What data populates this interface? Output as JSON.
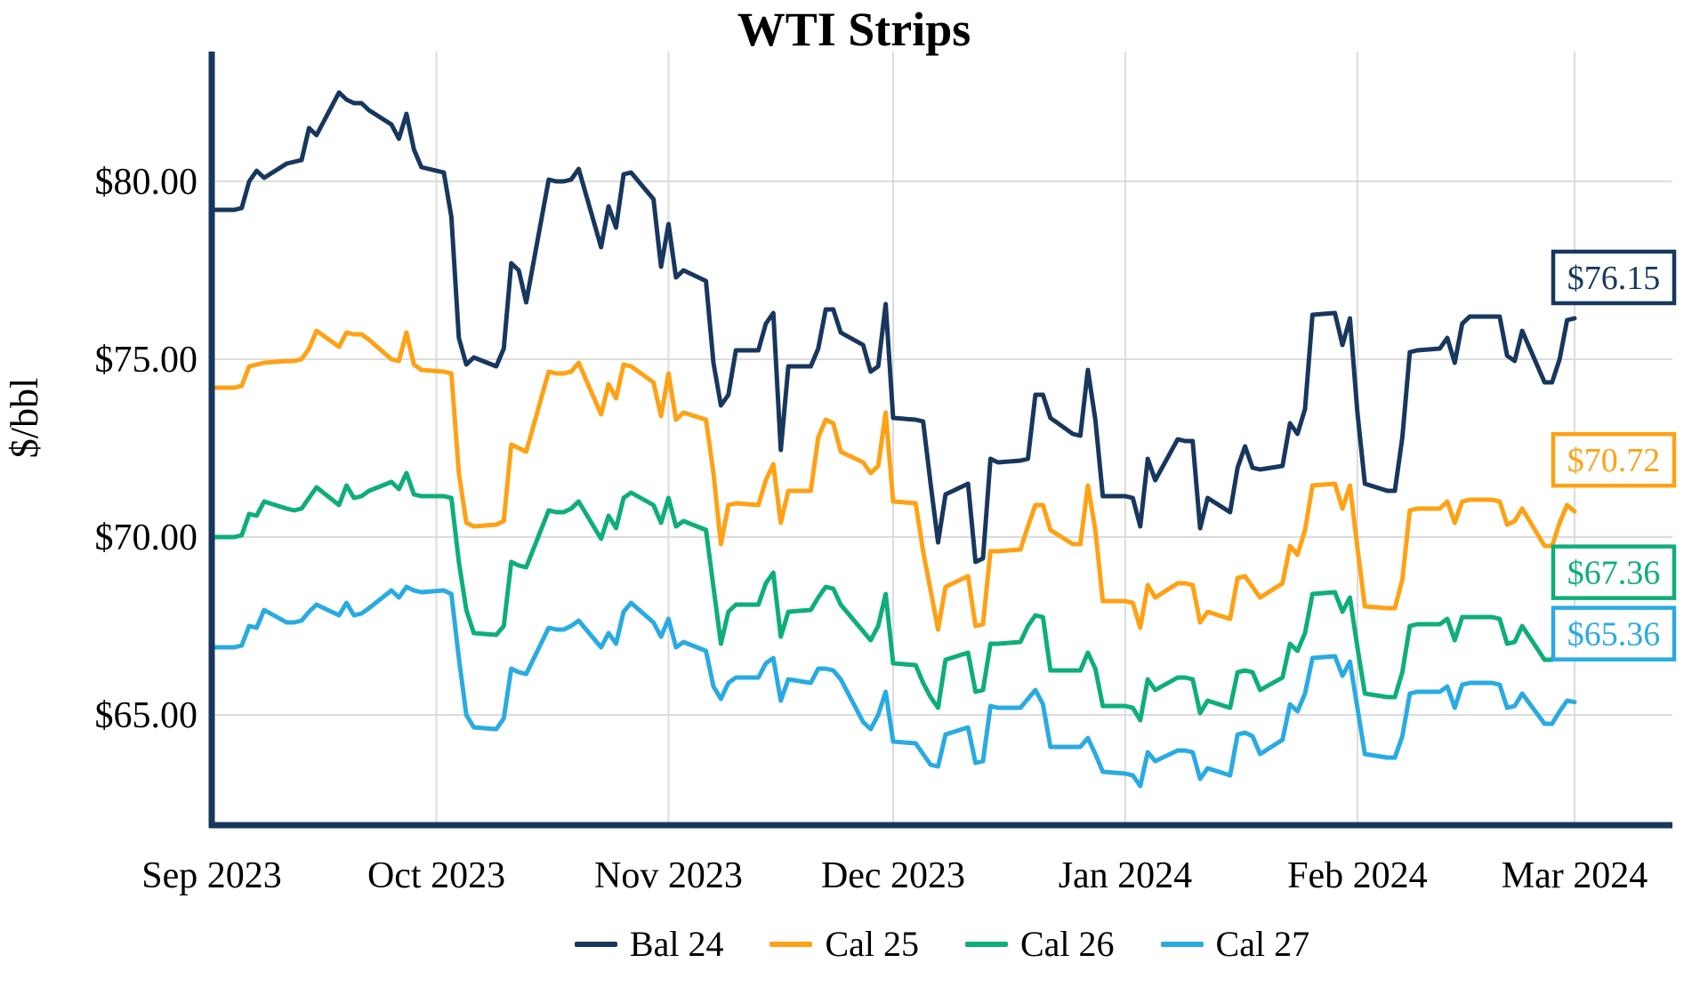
{
  "chart_data": {
    "type": "line",
    "title": "WTI Strips",
    "ylabel": "$/bbl",
    "grid": true,
    "legend_position": "bottom-center",
    "ylim": [
      61.9,
      83.65
    ],
    "colors": {
      "axis": "#17375E",
      "gridline": "#DCDCDC",
      "background": "#FFFFFF",
      "label_box_fill": "#FFFFFF"
    },
    "yticks": [
      {
        "value": 80,
        "label": "$80.00"
      },
      {
        "value": 75,
        "label": "$75.00"
      },
      {
        "value": 70,
        "label": "$70.00"
      },
      {
        "value": 65,
        "label": "$65.00"
      }
    ],
    "xticks": [
      {
        "date": "2023-09-01",
        "label": "Sep 2023"
      },
      {
        "date": "2023-10-01",
        "label": "Oct 2023"
      },
      {
        "date": "2023-11-01",
        "label": "Nov 2023"
      },
      {
        "date": "2023-12-01",
        "label": "Dec 2023"
      },
      {
        "date": "2024-01-01",
        "label": "Jan 2024"
      },
      {
        "date": "2024-02-01",
        "label": "Feb 2024"
      },
      {
        "date": "2024-03-01",
        "label": "Mar 2024"
      }
    ],
    "x": [
      "2023-09-01",
      "2023-09-04",
      "2023-09-05",
      "2023-09-06",
      "2023-09-07",
      "2023-09-08",
      "2023-09-11",
      "2023-09-12",
      "2023-09-13",
      "2023-09-14",
      "2023-09-15",
      "2023-09-18",
      "2023-09-19",
      "2023-09-20",
      "2023-09-21",
      "2023-09-22",
      "2023-09-25",
      "2023-09-26",
      "2023-09-27",
      "2023-09-28",
      "2023-09-29",
      "2023-10-02",
      "2023-10-03",
      "2023-10-04",
      "2023-10-05",
      "2023-10-06",
      "2023-10-09",
      "2023-10-10",
      "2023-10-11",
      "2023-10-12",
      "2023-10-13",
      "2023-10-16",
      "2023-10-17",
      "2023-10-18",
      "2023-10-19",
      "2023-10-20",
      "2023-10-23",
      "2023-10-24",
      "2023-10-25",
      "2023-10-26",
      "2023-10-27",
      "2023-10-30",
      "2023-10-31",
      "2023-11-01",
      "2023-11-02",
      "2023-11-03",
      "2023-11-06",
      "2023-11-07",
      "2023-11-08",
      "2023-11-09",
      "2023-11-10",
      "2023-11-13",
      "2023-11-14",
      "2023-11-15",
      "2023-11-16",
      "2023-11-17",
      "2023-11-20",
      "2023-11-21",
      "2023-11-22",
      "2023-11-23",
      "2023-11-24",
      "2023-11-27",
      "2023-11-28",
      "2023-11-29",
      "2023-11-30",
      "2023-12-01",
      "2023-12-04",
      "2023-12-05",
      "2023-12-06",
      "2023-12-07",
      "2023-12-08",
      "2023-12-11",
      "2023-12-12",
      "2023-12-13",
      "2023-12-14",
      "2023-12-15",
      "2023-12-18",
      "2023-12-19",
      "2023-12-20",
      "2023-12-21",
      "2023-12-22",
      "2023-12-25",
      "2023-12-26",
      "2023-12-27",
      "2023-12-28",
      "2023-12-29",
      "2024-01-01",
      "2024-01-02",
      "2024-01-03",
      "2024-01-04",
      "2024-01-05",
      "2024-01-08",
      "2024-01-09",
      "2024-01-10",
      "2024-01-11",
      "2024-01-12",
      "2024-01-15",
      "2024-01-16",
      "2024-01-17",
      "2024-01-18",
      "2024-01-19",
      "2024-01-22",
      "2024-01-23",
      "2024-01-24",
      "2024-01-25",
      "2024-01-26",
      "2024-01-29",
      "2024-01-30",
      "2024-01-31",
      "2024-02-01",
      "2024-02-02",
      "2024-02-05",
      "2024-02-06",
      "2024-02-07",
      "2024-02-08",
      "2024-02-09",
      "2024-02-12",
      "2024-02-13",
      "2024-02-14",
      "2024-02-15",
      "2024-02-16",
      "2024-02-19",
      "2024-02-20",
      "2024-02-21",
      "2024-02-22",
      "2024-02-23",
      "2024-02-26",
      "2024-02-27",
      "2024-02-28",
      "2024-02-29",
      "2024-03-01"
    ],
    "series": [
      {
        "name": "Bal 24",
        "color": "#17375E",
        "end_label": "$76.15",
        "values": [
          79.2,
          79.2,
          79.25,
          80.0,
          80.3,
          80.1,
          80.5,
          80.55,
          80.6,
          81.5,
          81.3,
          82.5,
          82.3,
          82.2,
          82.2,
          82.0,
          81.6,
          81.2,
          81.9,
          80.9,
          80.4,
          80.25,
          79.0,
          75.6,
          74.85,
          75.05,
          74.8,
          75.3,
          77.7,
          77.5,
          76.6,
          80.05,
          80.0,
          80.0,
          80.05,
          80.35,
          78.15,
          79.3,
          78.7,
          80.2,
          80.25,
          79.5,
          77.6,
          78.8,
          77.3,
          77.5,
          77.2,
          74.9,
          73.7,
          74.0,
          75.25,
          75.25,
          76.0,
          76.3,
          72.45,
          74.8,
          74.8,
          75.3,
          76.4,
          76.4,
          75.75,
          75.4,
          74.65,
          74.8,
          76.55,
          73.35,
          73.3,
          73.25,
          71.5,
          69.85,
          71.2,
          71.5,
          69.3,
          69.4,
          72.2,
          72.1,
          72.15,
          72.2,
          74.0,
          74.0,
          73.35,
          72.9,
          72.85,
          74.7,
          73.3,
          71.15,
          71.15,
          71.1,
          70.3,
          72.2,
          71.6,
          72.75,
          72.7,
          72.7,
          70.25,
          71.1,
          70.7,
          71.95,
          72.55,
          71.95,
          71.9,
          72.0,
          73.2,
          72.9,
          73.6,
          76.25,
          76.3,
          75.4,
          76.15,
          73.5,
          71.5,
          71.3,
          71.3,
          72.8,
          75.2,
          75.25,
          75.3,
          75.6,
          74.9,
          76.0,
          76.2,
          76.2,
          76.2,
          75.1,
          74.95,
          75.8,
          74.35,
          74.35,
          75.0,
          76.1,
          76.15
        ]
      },
      {
        "name": "Cal 25",
        "color": "#FFA114",
        "end_label": "$70.72",
        "values": [
          74.2,
          74.2,
          74.25,
          74.8,
          74.85,
          74.9,
          74.95,
          74.95,
          75.0,
          75.3,
          75.8,
          75.35,
          75.75,
          75.7,
          75.7,
          75.55,
          75.0,
          74.95,
          75.75,
          74.85,
          74.7,
          74.65,
          74.6,
          71.8,
          70.4,
          70.3,
          70.35,
          70.45,
          72.6,
          72.5,
          72.4,
          74.65,
          74.6,
          74.6,
          74.65,
          74.9,
          73.45,
          74.3,
          73.9,
          74.85,
          74.8,
          74.35,
          73.4,
          74.6,
          73.3,
          73.5,
          73.3,
          71.8,
          69.8,
          70.9,
          70.95,
          70.9,
          71.6,
          72.05,
          70.4,
          71.3,
          71.3,
          72.8,
          73.3,
          73.2,
          72.4,
          72.1,
          71.8,
          72.0,
          73.5,
          71.0,
          70.95,
          69.6,
          68.5,
          67.4,
          68.6,
          68.9,
          67.5,
          67.55,
          69.6,
          69.6,
          69.65,
          70.3,
          70.9,
          70.9,
          70.2,
          69.8,
          69.8,
          71.45,
          70.2,
          68.2,
          68.2,
          68.15,
          67.45,
          68.65,
          68.3,
          68.7,
          68.7,
          68.65,
          67.6,
          67.9,
          67.7,
          68.85,
          68.9,
          68.6,
          68.3,
          68.7,
          69.75,
          69.5,
          70.2,
          71.45,
          71.5,
          70.8,
          71.45,
          69.7,
          68.05,
          68.0,
          68.0,
          68.8,
          70.75,
          70.8,
          70.8,
          71.0,
          70.4,
          71.0,
          71.05,
          71.05,
          71.0,
          70.35,
          70.45,
          70.8,
          69.75,
          69.75,
          70.4,
          70.9,
          70.72
        ]
      },
      {
        "name": "Cal 26",
        "color": "#0EAE7B",
        "end_label": "$67.36",
        "values": [
          70.0,
          70.0,
          70.05,
          70.65,
          70.6,
          71.0,
          70.8,
          70.75,
          70.8,
          71.1,
          71.4,
          70.9,
          71.45,
          71.1,
          71.15,
          71.3,
          71.55,
          71.35,
          71.8,
          71.2,
          71.15,
          71.15,
          71.1,
          69.3,
          67.95,
          67.3,
          67.25,
          67.5,
          69.3,
          69.2,
          69.15,
          70.75,
          70.7,
          70.7,
          70.8,
          71.0,
          69.95,
          70.6,
          70.25,
          71.1,
          71.25,
          70.9,
          70.4,
          71.1,
          70.3,
          70.45,
          70.2,
          68.6,
          67.0,
          67.9,
          68.1,
          68.1,
          68.7,
          69.0,
          67.2,
          67.9,
          67.95,
          68.3,
          68.6,
          68.55,
          68.1,
          67.35,
          67.1,
          67.5,
          68.4,
          66.45,
          66.4,
          65.9,
          65.5,
          65.2,
          66.55,
          66.75,
          65.65,
          65.7,
          67.0,
          67.0,
          67.05,
          67.5,
          67.8,
          67.75,
          66.25,
          66.25,
          66.25,
          66.75,
          66.3,
          65.25,
          65.25,
          65.2,
          64.85,
          66.0,
          65.7,
          66.05,
          66.05,
          66.0,
          65.05,
          65.4,
          65.2,
          66.2,
          66.25,
          66.2,
          65.7,
          66.05,
          67.0,
          66.8,
          67.3,
          68.4,
          68.45,
          67.9,
          68.3,
          66.9,
          65.6,
          65.5,
          65.5,
          66.2,
          67.5,
          67.55,
          67.55,
          67.7,
          67.1,
          67.75,
          67.75,
          67.75,
          67.7,
          67.0,
          67.05,
          67.5,
          66.55,
          66.55,
          67.0,
          67.3,
          67.36
        ]
      },
      {
        "name": "Cal 27",
        "color": "#29ABE2",
        "end_label": "$65.36",
        "values": [
          66.9,
          66.9,
          66.95,
          67.5,
          67.45,
          67.95,
          67.6,
          67.6,
          67.65,
          67.9,
          68.1,
          67.8,
          68.15,
          67.8,
          67.85,
          68.0,
          68.5,
          68.3,
          68.6,
          68.5,
          68.45,
          68.5,
          68.4,
          66.6,
          65.0,
          64.65,
          64.6,
          64.9,
          66.3,
          66.2,
          66.15,
          67.45,
          67.4,
          67.4,
          67.5,
          67.65,
          66.9,
          67.3,
          67.0,
          67.9,
          68.15,
          67.6,
          67.2,
          67.7,
          66.9,
          67.05,
          66.8,
          65.8,
          65.45,
          65.9,
          66.05,
          66.05,
          66.45,
          66.6,
          65.4,
          66.0,
          65.9,
          66.3,
          66.3,
          66.25,
          66.0,
          64.8,
          64.6,
          65.0,
          65.65,
          64.25,
          64.2,
          63.9,
          63.6,
          63.55,
          64.45,
          64.65,
          63.65,
          63.7,
          65.25,
          65.2,
          65.2,
          65.45,
          65.7,
          65.3,
          64.1,
          64.1,
          64.1,
          64.35,
          63.9,
          63.4,
          63.35,
          63.3,
          63.0,
          63.95,
          63.7,
          64.0,
          64.0,
          63.95,
          63.2,
          63.5,
          63.3,
          64.45,
          64.5,
          64.4,
          63.9,
          64.3,
          65.3,
          65.1,
          65.6,
          66.6,
          66.65,
          66.1,
          66.5,
          65.2,
          63.9,
          63.8,
          63.8,
          64.4,
          65.6,
          65.65,
          65.65,
          65.8,
          65.2,
          65.85,
          65.9,
          65.9,
          65.85,
          65.2,
          65.25,
          65.6,
          64.75,
          64.75,
          65.1,
          65.4,
          65.36
        ]
      }
    ]
  }
}
